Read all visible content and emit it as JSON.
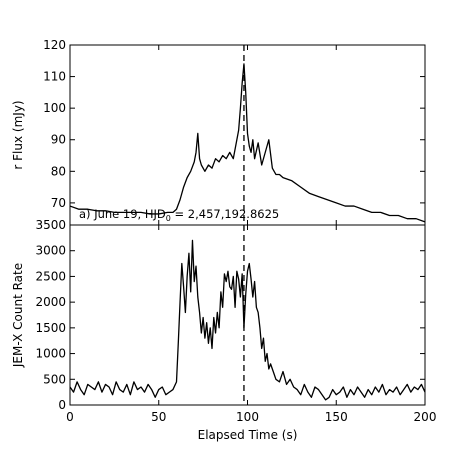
{
  "chart_data": [
    {
      "type": "line",
      "panel": "top",
      "ylabel": "r Flux (mJy)",
      "annotation": "a) June 19, HJD",
      "annotation_sub": "0",
      "annotation_tail": " = 2,457,192.8625",
      "xlim": [
        0,
        200
      ],
      "ylim": [
        63,
        120
      ],
      "yticks": [
        70,
        80,
        90,
        100,
        110,
        120
      ],
      "ytick_labels": [
        "70",
        "80",
        "90",
        "100",
        "110",
        "120"
      ],
      "vline_x": 98,
      "series": [
        {
          "x": [
            0,
            5,
            10,
            15,
            20,
            25,
            30,
            35,
            40,
            45,
            50,
            55,
            58,
            60,
            62,
            64,
            66,
            68,
            70,
            71,
            72,
            73,
            74,
            76,
            78,
            80,
            82,
            84,
            86,
            88,
            90,
            92,
            94,
            95,
            96,
            97,
            98,
            99,
            100,
            101,
            102,
            103,
            104,
            106,
            108,
            110,
            112,
            114,
            116,
            118,
            120,
            125,
            130,
            135,
            140,
            145,
            150,
            155,
            160,
            165,
            170,
            175,
            180,
            185,
            190,
            195,
            200
          ],
          "y": [
            69,
            68,
            68,
            67.5,
            67.5,
            67,
            67,
            67,
            67,
            66.5,
            66.5,
            67,
            67,
            68,
            71,
            75,
            78,
            80,
            83,
            86,
            92,
            84,
            82,
            80,
            82,
            81,
            84,
            83,
            85,
            84,
            86,
            84,
            90,
            93,
            100,
            108,
            114,
            105,
            92,
            88,
            86,
            90,
            84,
            89,
            82,
            86,
            90,
            81,
            79,
            79,
            78,
            77,
            75,
            73,
            72,
            71,
            70,
            69,
            69,
            68,
            67,
            67,
            66,
            66,
            65,
            65,
            64
          ]
        }
      ]
    },
    {
      "type": "line",
      "panel": "bottom",
      "xlabel": "Elapsed Time (s)",
      "ylabel": "JEM-X Count Rate",
      "xlim": [
        0,
        200
      ],
      "ylim": [
        0,
        3500
      ],
      "xticks": [
        0,
        50,
        100,
        150,
        200
      ],
      "xtick_labels": [
        "0",
        "50",
        "100",
        "150",
        "200"
      ],
      "yticks": [
        0,
        500,
        1000,
        1500,
        2000,
        2500,
        3000,
        3500
      ],
      "ytick_labels": [
        "0",
        "500",
        "1000",
        "1500",
        "2000",
        "2500",
        "3000",
        "3500"
      ],
      "vline_x": 98,
      "series": [
        {
          "x": [
            0,
            2,
            4,
            6,
            8,
            10,
            12,
            14,
            16,
            18,
            20,
            22,
            24,
            26,
            28,
            30,
            32,
            34,
            36,
            38,
            40,
            42,
            44,
            46,
            48,
            50,
            52,
            54,
            56,
            58,
            60,
            61,
            62,
            63,
            64,
            65,
            66,
            67,
            68,
            69,
            70,
            71,
            72,
            73,
            74,
            75,
            76,
            77,
            78,
            79,
            80,
            81,
            82,
            83,
            84,
            85,
            86,
            87,
            88,
            89,
            90,
            91,
            92,
            93,
            94,
            95,
            96,
            97,
            98,
            99,
            100,
            101,
            102,
            103,
            104,
            105,
            106,
            107,
            108,
            109,
            110,
            111,
            112,
            113,
            114,
            115,
            116,
            118,
            120,
            122,
            124,
            126,
            128,
            130,
            132,
            134,
            136,
            138,
            140,
            142,
            144,
            146,
            148,
            150,
            152,
            154,
            156,
            158,
            160,
            162,
            164,
            166,
            168,
            170,
            172,
            174,
            176,
            178,
            180,
            182,
            184,
            186,
            188,
            190,
            192,
            194,
            196,
            198,
            200
          ],
          "y": [
            350,
            250,
            450,
            300,
            200,
            400,
            350,
            300,
            450,
            250,
            400,
            350,
            200,
            450,
            300,
            250,
            400,
            200,
            450,
            300,
            350,
            250,
            400,
            300,
            150,
            300,
            350,
            200,
            250,
            300,
            450,
            1200,
            2000,
            2750,
            2300,
            1800,
            2500,
            2950,
            2200,
            3200,
            2400,
            2700,
            2100,
            1800,
            1400,
            1700,
            1300,
            1600,
            1200,
            1500,
            1100,
            1700,
            1400,
            1800,
            1500,
            2200,
            1900,
            2550,
            2400,
            2600,
            2300,
            2250,
            2500,
            1900,
            2600,
            2450,
            2100,
            2550,
            1500,
            2150,
            2600,
            2750,
            2450,
            2100,
            2400,
            1900,
            1800,
            1500,
            1100,
            1300,
            850,
            1000,
            700,
            800,
            700,
            600,
            500,
            450,
            650,
            400,
            500,
            350,
            300,
            200,
            400,
            250,
            150,
            350,
            300,
            200,
            100,
            150,
            300,
            200,
            250,
            350,
            150,
            300,
            200,
            350,
            250,
            150,
            300,
            200,
            350,
            250,
            400,
            200,
            300,
            250,
            350,
            200,
            300,
            400,
            250,
            350,
            300,
            400,
            250
          ]
        }
      ]
    }
  ]
}
